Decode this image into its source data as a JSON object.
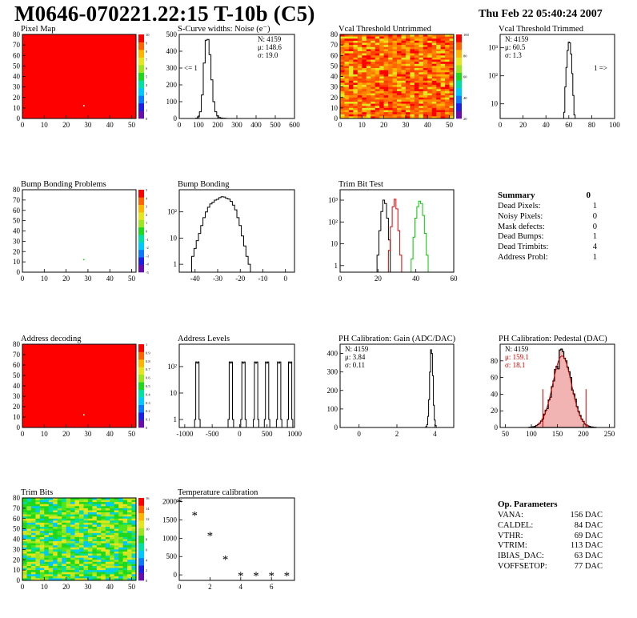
{
  "header": {
    "title": "M0646-070221.22:15 T-10b (C5)",
    "timestamp": "Thu Feb 22 05:40:24 2007"
  },
  "colors": {
    "map_red": "#ff0000",
    "hist_black": "#000000",
    "trim_red": "#e00000",
    "trim_green": "#00c800",
    "fit_red": "#cc0000",
    "stat_red": "#cc0000"
  },
  "chart_data": [
    {
      "id": "pixel-map",
      "type": "heatmap",
      "title": "Pixel Map",
      "xlim": [
        0,
        52
      ],
      "ylim": [
        0,
        80
      ],
      "xticks": [
        0,
        10,
        20,
        30,
        40,
        50
      ],
      "yticks": [
        0,
        10,
        20,
        30,
        40,
        50,
        60,
        70,
        80
      ],
      "fill": "uniform-red",
      "anomaly": [
        28,
        12
      ],
      "zticks": [
        "0",
        "1",
        "2",
        "3",
        "4",
        "5",
        "6",
        "7",
        "8",
        "9",
        "10"
      ]
    },
    {
      "id": "scurve",
      "type": "histogram",
      "title": "S-Curve widths: Noise (e⁻)",
      "xlim": [
        0,
        600
      ],
      "ylim": [
        0,
        500
      ],
      "xticks": [
        0,
        100,
        200,
        300,
        400,
        500,
        600
      ],
      "yticks": [
        0,
        100,
        200,
        300,
        400,
        500
      ],
      "stats": [
        "N: 4159",
        "μ: 148.6",
        "σ: 19.0"
      ],
      "note": "<= 1",
      "bins": [
        [
          90,
          2
        ],
        [
          100,
          10
        ],
        [
          110,
          40
        ],
        [
          120,
          140
        ],
        [
          130,
          330
        ],
        [
          140,
          465
        ],
        [
          150,
          470
        ],
        [
          160,
          380
        ],
        [
          170,
          230
        ],
        [
          180,
          100
        ],
        [
          190,
          40
        ],
        [
          200,
          15
        ],
        [
          210,
          6
        ],
        [
          220,
          3
        ],
        [
          230,
          2
        ],
        [
          240,
          1
        ],
        [
          250,
          0
        ]
      ]
    },
    {
      "id": "vcal-untrimmed",
      "type": "heatmap",
      "title": "Vcal Threshold Untrimmed",
      "xlim": [
        0,
        52
      ],
      "ylim": [
        0,
        80
      ],
      "xticks": [
        0,
        10,
        20,
        30,
        40,
        50
      ],
      "yticks": [
        0,
        10,
        20,
        30,
        40,
        50,
        60,
        70,
        80
      ],
      "fill": "random-orange",
      "zticks": [
        "20",
        "40",
        "60",
        "80",
        "100"
      ]
    },
    {
      "id": "vcal-trimmed",
      "type": "histogram",
      "title": "Vcal Threshold Trimmed",
      "xlim": [
        0,
        100
      ],
      "ylim": [
        3,
        3000
      ],
      "log_y": true,
      "xticks": [
        0,
        20,
        40,
        60,
        80,
        100
      ],
      "yticks": [
        "10",
        "10²",
        "10³"
      ],
      "stats": [
        "N: 4159",
        "μ: 60.5",
        "σ:  1.3"
      ],
      "note": "1 =>",
      "bins": [
        [
          56,
          5
        ],
        [
          57,
          40
        ],
        [
          58,
          200
        ],
        [
          59,
          800
        ],
        [
          60,
          1600
        ],
        [
          61,
          1500
        ],
        [
          62,
          600
        ],
        [
          63,
          120
        ],
        [
          64,
          20
        ],
        [
          65,
          4
        ]
      ]
    },
    {
      "id": "bump-problems",
      "type": "heatmap",
      "title": "Bump Bonding Problems",
      "xlim": [
        0,
        52
      ],
      "ylim": [
        0,
        80
      ],
      "xticks": [
        0,
        10,
        20,
        30,
        40,
        50
      ],
      "yticks": [
        0,
        10,
        20,
        30,
        40,
        50,
        60,
        70,
        80
      ],
      "fill": "empty",
      "anomaly": [
        28,
        12
      ],
      "zticks": [
        "-5",
        "-4",
        "-3",
        "-2",
        "-1",
        "0",
        "1",
        "2",
        "3",
        "4",
        "5"
      ]
    },
    {
      "id": "bump-bonding",
      "type": "histogram",
      "title": "Bump Bonding",
      "xlim": [
        -47,
        4
      ],
      "ylim": [
        0.5,
        700
      ],
      "log_y": true,
      "xticks": [
        -40,
        -30,
        -20,
        -10,
        0
      ],
      "yticks": [
        "1",
        "10",
        "10²"
      ],
      "bins": [
        [
          -41,
          2
        ],
        [
          -40,
          4
        ],
        [
          -39,
          8
        ],
        [
          -38,
          15
        ],
        [
          -37,
          30
        ],
        [
          -36,
          60
        ],
        [
          -35,
          100
        ],
        [
          -34,
          150
        ],
        [
          -33,
          200
        ],
        [
          -32,
          230
        ],
        [
          -31,
          280
        ],
        [
          -30,
          300
        ],
        [
          -29,
          350
        ],
        [
          -28,
          380
        ],
        [
          -27,
          370
        ],
        [
          -26,
          330
        ],
        [
          -25,
          310
        ],
        [
          -24,
          250
        ],
        [
          -23,
          180
        ],
        [
          -22,
          120
        ],
        [
          -21,
          60
        ],
        [
          -20,
          30
        ],
        [
          -19,
          12
        ],
        [
          -18,
          5
        ],
        [
          -17,
          2
        ],
        [
          -16,
          1
        ]
      ]
    },
    {
      "id": "trim-bit-test",
      "type": "histogram",
      "title": "Trim Bit Test",
      "xlim": [
        0,
        60
      ],
      "ylim": [
        0.5,
        3000
      ],
      "log_y": true,
      "xticks": [
        0,
        20,
        40,
        60
      ],
      "yticks": [
        "1",
        "10",
        "10²",
        "10³"
      ],
      "series": [
        {
          "color": "#000000",
          "bins": [
            [
              20,
              3
            ],
            [
              21,
              40
            ],
            [
              22,
              300
            ],
            [
              23,
              1000
            ],
            [
              24,
              700
            ],
            [
              25,
              150
            ],
            [
              26,
              15
            ]
          ]
        },
        {
          "color": "#e00000",
          "bins": [
            [
              26,
              5
            ],
            [
              27,
              60
            ],
            [
              28,
              500
            ],
            [
              29,
              1100
            ],
            [
              30,
              400
            ],
            [
              31,
              40
            ],
            [
              32,
              3
            ]
          ]
        },
        {
          "color": "#00c800",
          "bins": [
            [
              38,
              2
            ],
            [
              39,
              20
            ],
            [
              40,
              150
            ],
            [
              41,
              500
            ],
            [
              42,
              900
            ],
            [
              43,
              700
            ],
            [
              44,
              200
            ],
            [
              45,
              30
            ],
            [
              46,
              3
            ]
          ]
        }
      ]
    },
    {
      "id": "address-decoding",
      "type": "heatmap",
      "title": "Address decoding",
      "xlim": [
        0,
        52
      ],
      "ylim": [
        0,
        80
      ],
      "xticks": [
        0,
        10,
        20,
        30,
        40,
        50
      ],
      "yticks": [
        0,
        10,
        20,
        30,
        40,
        50,
        60,
        70,
        80
      ],
      "fill": "uniform-red",
      "anomaly": [
        28,
        12
      ],
      "zticks": [
        "0",
        "0.1",
        "0.2",
        "0.3",
        "0.4",
        "0.5",
        "0.6",
        "0.7",
        "0.8",
        "0.9",
        "1"
      ]
    },
    {
      "id": "address-levels",
      "type": "histogram",
      "title": "Address Levels",
      "xlim": [
        -1100,
        1000
      ],
      "ylim": [
        0.5,
        700
      ],
      "log_y": true,
      "xticks": [
        -1000,
        -500,
        0,
        500,
        1000
      ],
      "yticks": [
        "1",
        "10",
        "10²"
      ],
      "peaks": [
        -770,
        -160,
        70,
        300,
        500,
        720,
        920
      ],
      "peak_height": 150
    },
    {
      "id": "ph-gain",
      "type": "histogram",
      "title": "PH Calibration: Gain (ADC/DAC)",
      "xlim": [
        -1,
        5
      ],
      "ylim": [
        0,
        450
      ],
      "xticks": [
        0,
        2,
        4
      ],
      "yticks": [
        0,
        100,
        200,
        300,
        400
      ],
      "stats": [
        "N: 4159",
        "μ: 3.84",
        "σ: 0.11"
      ],
      "bins": [
        [
          3.55,
          5
        ],
        [
          3.6,
          15
        ],
        [
          3.65,
          60
        ],
        [
          3.7,
          150
        ],
        [
          3.75,
          300
        ],
        [
          3.8,
          420
        ],
        [
          3.85,
          400
        ],
        [
          3.9,
          280
        ],
        [
          3.95,
          120
        ],
        [
          4.0,
          40
        ],
        [
          4.05,
          10
        ]
      ]
    },
    {
      "id": "ph-pedestal",
      "type": "histogram",
      "title": "PH Calibration: Pedestal (DAC)",
      "xlim": [
        40,
        260
      ],
      "ylim": [
        0,
        100
      ],
      "xticks": [
        50,
        100,
        150,
        200,
        250
      ],
      "yticks": [
        0,
        20,
        40,
        60,
        80
      ],
      "stats": [
        "N: 4159",
        "μ: 159.1",
        "σ: 18.1"
      ],
      "stats_colors": [
        "#000000",
        "#cc0000",
        "#cc0000"
      ],
      "fit": {
        "mean": 159.1,
        "sigma": 18.1,
        "amp": 86
      },
      "cut_lines": [
        122,
        205
      ]
    },
    {
      "id": "trim-bits",
      "type": "heatmap",
      "title": "Trim Bits",
      "xlim": [
        0,
        52
      ],
      "ylim": [
        0,
        80
      ],
      "xticks": [
        0,
        10,
        20,
        30,
        40,
        50
      ],
      "yticks": [
        0,
        10,
        20,
        30,
        40,
        50,
        60,
        70,
        80
      ],
      "fill": "random-green",
      "zticks": [
        "0",
        "2",
        "4",
        "6",
        "8",
        "10",
        "12",
        "14",
        "16"
      ]
    },
    {
      "id": "temperature",
      "type": "scatter",
      "title": "Temperature calibration",
      "xlim": [
        0,
        7.5
      ],
      "ylim": [
        -150,
        2100
      ],
      "xticks": [
        0,
        2,
        4,
        6
      ],
      "yticks": [
        0,
        500,
        1000,
        1500,
        2000
      ],
      "points": [
        [
          0,
          2000
        ],
        [
          1,
          1650
        ],
        [
          2,
          1100
        ],
        [
          3,
          450
        ],
        [
          4,
          0
        ],
        [
          5,
          0
        ],
        [
          6,
          0
        ],
        [
          7,
          0
        ]
      ]
    }
  ],
  "summary": {
    "title": "Summary",
    "total": "0",
    "rows": [
      {
        "label": "Dead Pixels:",
        "value": "1"
      },
      {
        "label": "Noisy Pixels:",
        "value": "0"
      },
      {
        "label": "Mask defects:",
        "value": "0"
      },
      {
        "label": "Dead Bumps:",
        "value": "1"
      },
      {
        "label": "Dead Trimbits:",
        "value": "4"
      },
      {
        "label": "Address Probl:",
        "value": "1"
      }
    ]
  },
  "parameters": {
    "title": "Op. Parameters",
    "rows": [
      {
        "label": "VANA:",
        "value": "156 DAC"
      },
      {
        "label": "CALDEL:",
        "value": "84 DAC"
      },
      {
        "label": "VTHR:",
        "value": "69 DAC"
      },
      {
        "label": "VTRIM:",
        "value": "113 DAC"
      },
      {
        "label": "IBIAS_DAC:",
        "value": "63 DAC"
      },
      {
        "label": "VOFFSETOP:",
        "value": "77 DAC"
      }
    ]
  }
}
